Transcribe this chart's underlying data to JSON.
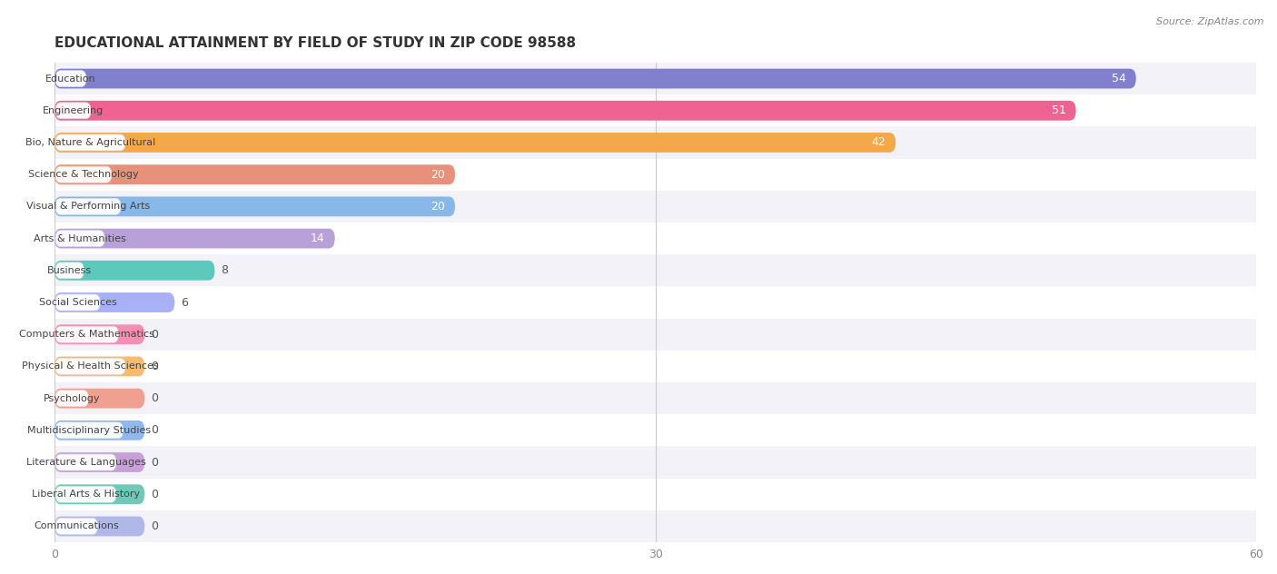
{
  "title": "EDUCATIONAL ATTAINMENT BY FIELD OF STUDY IN ZIP CODE 98588",
  "source": "Source: ZipAtlas.com",
  "categories": [
    "Education",
    "Engineering",
    "Bio, Nature & Agricultural",
    "Science & Technology",
    "Visual & Performing Arts",
    "Arts & Humanities",
    "Business",
    "Social Sciences",
    "Computers & Mathematics",
    "Physical & Health Sciences",
    "Psychology",
    "Multidisciplinary Studies",
    "Literature & Languages",
    "Liberal Arts & History",
    "Communications"
  ],
  "values": [
    54,
    51,
    42,
    20,
    20,
    14,
    8,
    6,
    0,
    0,
    0,
    0,
    0,
    0,
    0
  ],
  "bar_colors": [
    "#8080cc",
    "#f06292",
    "#f5a84a",
    "#e8917a",
    "#88b8e8",
    "#b8a0d8",
    "#5dc8bc",
    "#aab0f5",
    "#f48fb1",
    "#f5bc70",
    "#f0a090",
    "#90b8f0",
    "#c8a0d8",
    "#70c8b8",
    "#b0b8e8"
  ],
  "xlim": [
    0,
    60
  ],
  "xticks": [
    0,
    30,
    60
  ],
  "background_color": "#ffffff",
  "row_bg_even": "#f2f2f8",
  "row_bg_odd": "#ffffff",
  "title_fontsize": 11,
  "bar_height": 0.62,
  "label_fontsize": 9,
  "value_fontsize": 9
}
